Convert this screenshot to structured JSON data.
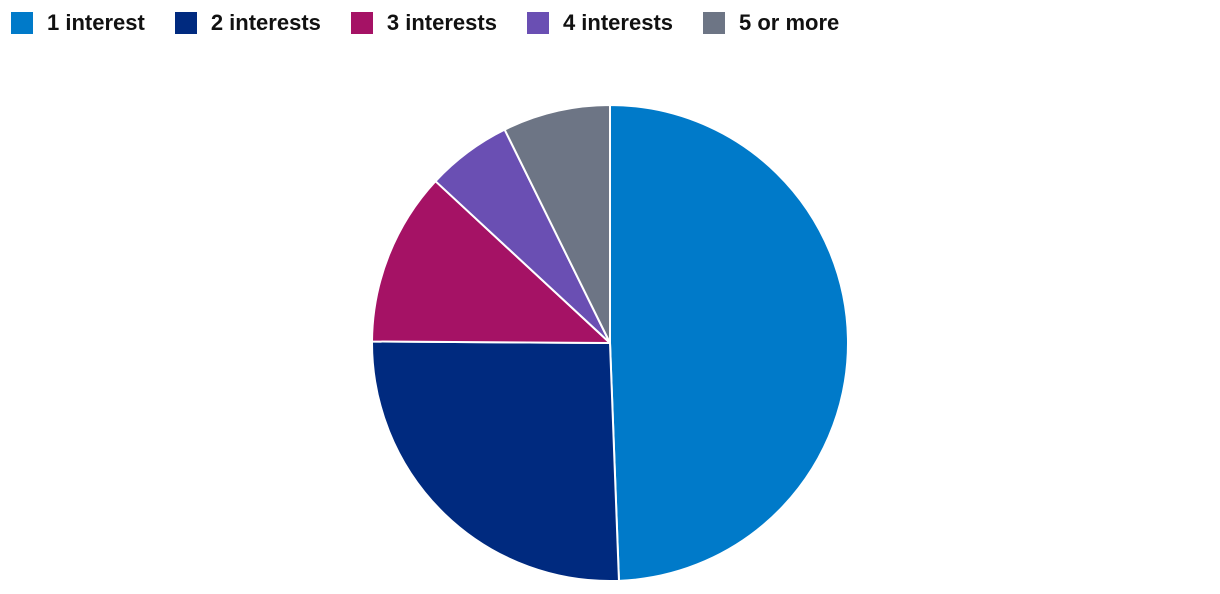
{
  "chart_data": {
    "type": "pie",
    "series": [
      {
        "name": "1 interest",
        "color": "#007ac9",
        "values": [
          49.4
        ]
      },
      {
        "name": "2 interests",
        "color": "#002a7f",
        "values": [
          25.7
        ]
      },
      {
        "name": "3 interests",
        "color": "#a51265",
        "values": [
          11.8
        ]
      },
      {
        "name": "4 interests",
        "color": "#6a4fb3",
        "values": [
          5.8
        ]
      },
      {
        "name": "5 or more",
        "color": "#6d7585",
        "values": [
          7.3
        ]
      }
    ],
    "legend": "top-left"
  }
}
